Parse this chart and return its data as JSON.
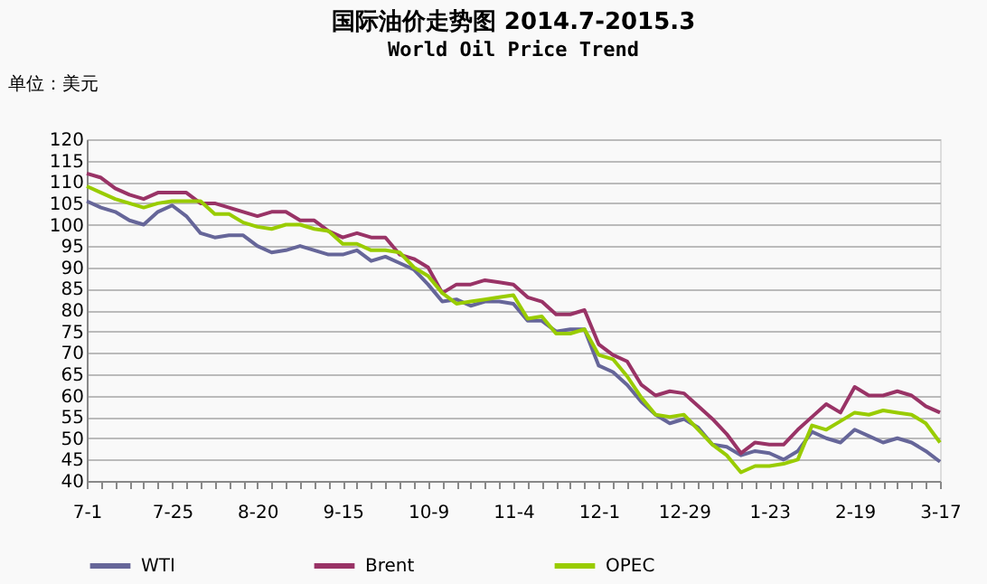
{
  "chart_data": {
    "type": "line",
    "title": "国际油价走势图 2014.7-2015.3",
    "subtitle": "World Oil Price Trend",
    "ylabel": "单位：美元",
    "categories": [
      "7-1",
      null,
      null,
      null,
      null,
      null,
      "7-25",
      null,
      null,
      null,
      null,
      null,
      "8-20",
      null,
      null,
      null,
      null,
      null,
      "9-15",
      null,
      null,
      null,
      null,
      null,
      "10-9",
      null,
      null,
      null,
      null,
      null,
      "11-4",
      null,
      null,
      null,
      null,
      null,
      "12-1",
      null,
      null,
      null,
      null,
      null,
      "12-29",
      null,
      null,
      null,
      null,
      null,
      "1-23",
      null,
      null,
      null,
      null,
      null,
      "2-19",
      null,
      null,
      null,
      null,
      null,
      "3-17"
    ],
    "series": [
      {
        "name": "WTI",
        "color": "#666699",
        "values": [
          105.5,
          104,
          103,
          101,
          100,
          103,
          104.5,
          102,
          98,
          97,
          97.5,
          97.5,
          95,
          93.5,
          94,
          95,
          94,
          93,
          93,
          94,
          91.5,
          92.5,
          91,
          89.5,
          86,
          82,
          82.5,
          81,
          82,
          82,
          81.5,
          77.5,
          77.5,
          75,
          75.5,
          75.5,
          67,
          65.5,
          62.5,
          58.5,
          55.5,
          53.5,
          54.5,
          52.5,
          48.5,
          48,
          46,
          47,
          46.5,
          45,
          47,
          51.5,
          50,
          49,
          52,
          50.5,
          49,
          50,
          49,
          47,
          44.5
        ]
      },
      {
        "name": "Brent",
        "color": "#993366",
        "values": [
          112,
          111,
          108.5,
          107,
          106,
          107.5,
          107.5,
          107.5,
          105,
          105,
          104,
          103,
          102,
          103,
          103,
          101,
          101,
          98.5,
          97,
          98,
          97,
          97,
          93,
          92,
          90,
          84,
          86,
          86,
          87,
          86.5,
          86,
          83,
          82,
          79,
          79,
          80,
          72,
          69.5,
          68,
          62.5,
          60,
          61,
          60.5,
          57.5,
          54.5,
          51,
          46.5,
          49,
          48.5,
          48.5,
          52,
          55,
          58,
          56,
          62,
          60,
          60,
          61,
          60,
          57.5,
          56
        ]
      },
      {
        "name": "OPEC",
        "color": "#99cc00",
        "values": [
          109,
          107.5,
          106,
          105,
          104,
          105,
          105.5,
          105.5,
          105.5,
          102.5,
          102.5,
          100.5,
          99.5,
          99,
          100,
          100,
          99,
          98.5,
          95.5,
          95.5,
          94,
          94,
          93.5,
          90,
          88,
          84,
          81.5,
          82,
          82.5,
          83,
          83.5,
          78,
          78.5,
          74.5,
          74.5,
          75.5,
          69.5,
          68.5,
          64.5,
          59.5,
          55.5,
          55,
          55.5,
          52,
          48.5,
          46,
          42,
          43.5,
          43.5,
          44,
          45,
          53,
          52,
          54,
          56,
          55.5,
          56.5,
          56,
          55.5,
          53.5,
          49
        ]
      }
    ],
    "ylim": [
      40,
      120
    ],
    "yticks": [
      40,
      45,
      50,
      55,
      60,
      65,
      70,
      75,
      80,
      85,
      90,
      95,
      100,
      105,
      110,
      115,
      120
    ],
    "grid": "y",
    "legend": "bottom",
    "marker": "none",
    "line_style": "solid"
  }
}
